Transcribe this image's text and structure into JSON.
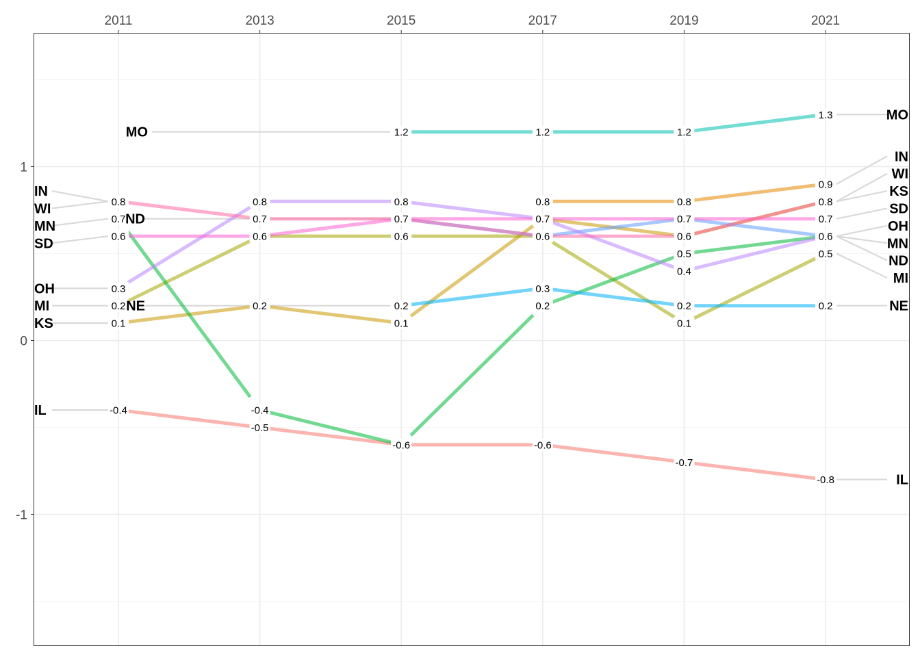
{
  "chart_data": {
    "type": "line",
    "chart_style": "slopegraph",
    "title": "",
    "xlabel": "",
    "ylabel": "",
    "x": [
      2011,
      2013,
      2015,
      2017,
      2019,
      2021
    ],
    "x_tick_labels": [
      "2011",
      "2013",
      "2015",
      "2017",
      "2019",
      "2021"
    ],
    "x_axis_position": "top",
    "y_ticks": [
      -1,
      0,
      1
    ],
    "y_tick_labels": [
      "-1",
      "0",
      "1"
    ],
    "ylim": [
      -1.75,
      1.78
    ],
    "grid": true,
    "legend": "none",
    "series": [
      {
        "name": "IL",
        "color": "#F8766D",
        "values": [
          -0.4,
          -0.5,
          -0.6,
          -0.6,
          -0.7,
          -0.8
        ],
        "value_labels": [
          "-0.4",
          "-0.5",
          "-0.6",
          "-0.6",
          "-0.7",
          "-0.8"
        ]
      },
      {
        "name": "IN",
        "color": "#E58700",
        "values": [
          null,
          null,
          null,
          0.8,
          0.8,
          0.9
        ],
        "value_labels": [
          null,
          null,
          null,
          "0.8",
          "0.8",
          "0.9"
        ]
      },
      {
        "name": "KS",
        "color": "#C99800",
        "values": [
          0.1,
          0.2,
          0.1,
          0.7,
          0.6,
          0.8
        ],
        "value_labels": [
          "0.1",
          "0.2",
          "0.1",
          "0.7",
          "0.6",
          "0.8"
        ]
      },
      {
        "name": "MI",
        "color": "#A3A500",
        "values": [
          0.2,
          0.6,
          0.6,
          0.6,
          0.1,
          0.5
        ],
        "value_labels": [
          "0.2",
          "0.6",
          "0.6",
          "0.6",
          "0.1",
          "0.5"
        ]
      },
      {
        "name": "MN",
        "color": "#00BA38",
        "values": [
          0.7,
          -0.4,
          -0.6,
          0.2,
          0.5,
          0.6
        ],
        "value_labels": [
          "0.7",
          "-0.4",
          "-0.6",
          "0.2",
          "0.5",
          "0.6"
        ]
      },
      {
        "name": "MO",
        "color": "#00C0AF",
        "values": [
          null,
          null,
          1.2,
          1.2,
          1.2,
          1.3
        ],
        "value_labels": [
          null,
          null,
          "1.2",
          "1.2",
          "1.2",
          "1.3"
        ]
      },
      {
        "name": "NE",
        "color": "#00B0F6",
        "values": [
          null,
          null,
          0.2,
          0.3,
          0.2,
          0.2
        ],
        "value_labels": [
          null,
          null,
          "0.2",
          "0.3",
          "0.2",
          "0.2"
        ]
      },
      {
        "name": "ND",
        "color": "#619CFF",
        "values": [
          null,
          null,
          0.7,
          0.6,
          0.7,
          0.6
        ],
        "value_labels": [
          null,
          null,
          "0.7",
          "0.6",
          "0.7",
          "0.6"
        ]
      },
      {
        "name": "OH",
        "color": "#B983FF",
        "values": [
          0.3,
          0.8,
          0.8,
          0.7,
          0.4,
          0.6
        ],
        "value_labels": [
          "0.3",
          "0.8",
          "0.8",
          "0.7",
          "0.4",
          "0.6"
        ]
      },
      {
        "name": "SD",
        "color": "#FD61D1",
        "values": [
          0.6,
          0.6,
          0.7,
          0.7,
          0.7,
          0.7
        ],
        "value_labels": [
          "0.6",
          "0.6",
          "0.7",
          "0.7",
          "0.7",
          "0.7"
        ]
      },
      {
        "name": "WI",
        "color": "#FF67A4",
        "values": [
          0.8,
          0.7,
          0.7,
          0.6,
          0.6,
          0.8
        ],
        "value_labels": [
          "0.8",
          "0.7",
          "0.7",
          "0.6",
          "0.6",
          "0.8"
        ]
      },
      {
        "name": "ND_2011",
        "color": "#7F7F7F",
        "values": [
          null,
          null,
          null,
          null,
          null,
          null
        ]
      },
      {
        "name": "WI_2013",
        "color": "#7F7F7F",
        "values": [
          null,
          null,
          null,
          null,
          null,
          null
        ]
      }
    ],
    "value_label_overrides": [
      {
        "year": 2011,
        "text": "0.2"
      },
      {
        "year": 2011,
        "text": "0.7"
      }
    ],
    "left_labels": [
      {
        "name": "IN",
        "value": 0.86
      },
      {
        "name": "WI",
        "value": 0.76
      },
      {
        "name": "MN",
        "value": 0.66
      },
      {
        "name": "SD",
        "value": 0.56
      },
      {
        "name": "OH",
        "value": 0.3
      },
      {
        "name": "MI",
        "value": 0.2
      },
      {
        "name": "KS",
        "value": 0.1
      },
      {
        "name": "IL",
        "value": -0.4
      }
    ],
    "inline_labels": [
      {
        "name": "ND",
        "year": 2011,
        "value": 0.7
      },
      {
        "name": "NE",
        "year": 2011,
        "value": 0.2
      },
      {
        "name": "MO",
        "year": 2011,
        "value": 1.2
      }
    ],
    "right_labels": [
      {
        "name": "MO",
        "value": 1.3
      },
      {
        "name": "IN",
        "value": 1.06
      },
      {
        "name": "WI",
        "value": 0.96
      },
      {
        "name": "KS",
        "value": 0.86
      },
      {
        "name": "SD",
        "value": 0.76
      },
      {
        "name": "OH",
        "value": 0.66
      },
      {
        "name": "MN",
        "value": 0.56
      },
      {
        "name": "ND",
        "value": 0.46
      },
      {
        "name": "MI",
        "value": 0.36
      },
      {
        "name": "NE",
        "value": 0.2
      },
      {
        "name": "IL",
        "value": -0.8
      }
    ]
  }
}
